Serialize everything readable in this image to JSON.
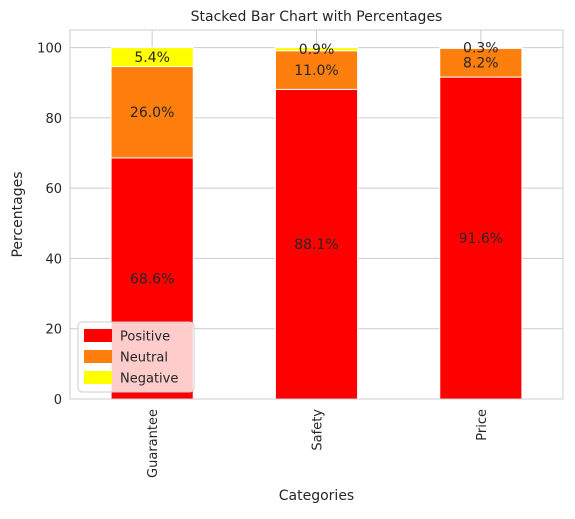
{
  "chart_data": {
    "type": "bar",
    "stacked": true,
    "title": "Stacked Bar Chart with Percentages",
    "xlabel": "Categories",
    "ylabel": "Percentages",
    "categories": [
      "Guarantee",
      "Safety",
      "Price"
    ],
    "series": [
      {
        "name": "Positive",
        "color": "#ff0000",
        "values": [
          68.6,
          88.1,
          91.6
        ],
        "labels": [
          "68.6%",
          "88.1%",
          "91.6%"
        ]
      },
      {
        "name": "Neutral",
        "color": "#ff7f0e",
        "values": [
          26.0,
          11.0,
          8.2
        ],
        "labels": [
          "26.0%",
          "11.0%",
          "8.2%"
        ]
      },
      {
        "name": "Negative",
        "color": "#ffff00",
        "values": [
          5.4,
          0.9,
          0.3
        ],
        "labels": [
          "5.4%",
          "0.9%",
          "0.3%"
        ]
      }
    ],
    "ylim": [
      0,
      105
    ],
    "yticks": [
      0,
      20,
      40,
      60,
      80,
      100
    ],
    "grid": true,
    "legend_position": "lower-left"
  }
}
